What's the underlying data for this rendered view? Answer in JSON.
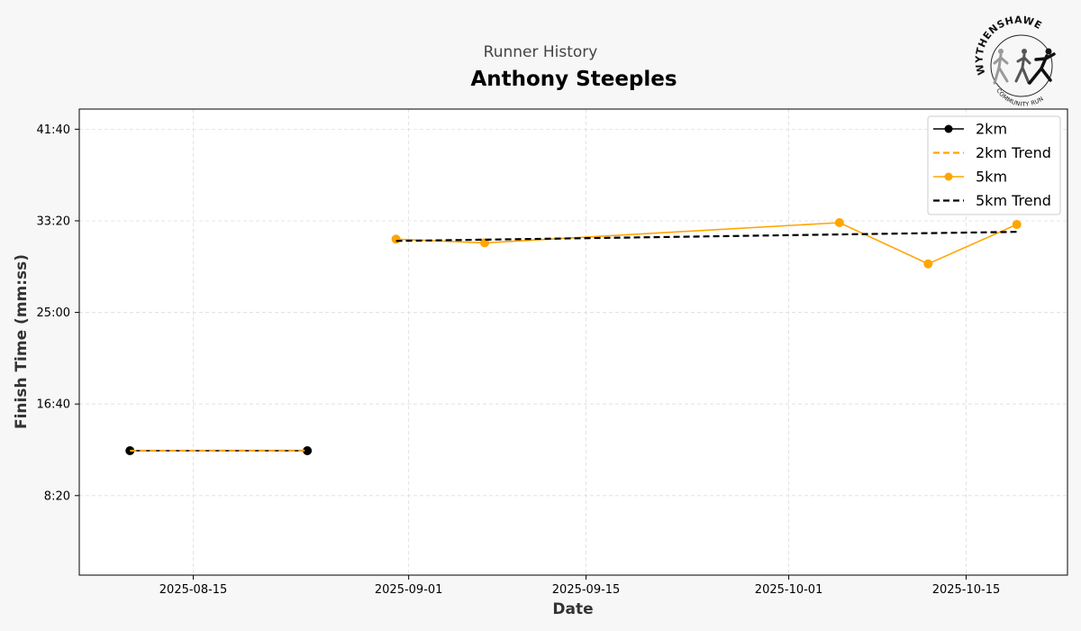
{
  "header": {
    "suptitle": "Runner History",
    "title": "Anthony Steeples"
  },
  "logo": {
    "name": "wythenshawe-community-run-logo",
    "text_top": "WYTHENSHAWE",
    "text_bottom": "COMMUNITY RUN"
  },
  "chart_data": {
    "type": "line",
    "xlabel": "Date",
    "ylabel": "Finish Time (mm:ss)",
    "x_ticks": [
      "2025-08-15",
      "2025-09-01",
      "2025-09-15",
      "2025-10-01",
      "2025-10-15"
    ],
    "y_ticks": [
      "8:20",
      "16:40",
      "25:00",
      "33:20",
      "41:40"
    ],
    "xlim": [
      "2025-08-06",
      "2025-10-23"
    ],
    "ylim": [
      "1:06",
      "43:30"
    ],
    "grid": true,
    "legend_position": "top-right",
    "series": [
      {
        "name": "2km",
        "color": "#000000",
        "style": "solid",
        "marker": "circle",
        "points": [
          {
            "x": "2025-08-10",
            "y": "12:25"
          },
          {
            "x": "2025-08-24",
            "y": "12:25"
          }
        ]
      },
      {
        "name": "2km Trend",
        "color": "#FFA500",
        "style": "dashed",
        "marker": "none",
        "points": [
          {
            "x": "2025-08-10",
            "y": "12:25"
          },
          {
            "x": "2025-08-24",
            "y": "12:26"
          }
        ]
      },
      {
        "name": "5km",
        "color": "#FFA500",
        "style": "solid",
        "marker": "circle",
        "points": [
          {
            "x": "2025-08-31",
            "y": "31:40"
          },
          {
            "x": "2025-09-07",
            "y": "31:20"
          },
          {
            "x": "2025-10-05",
            "y": "33:10"
          },
          {
            "x": "2025-10-12",
            "y": "29:25"
          },
          {
            "x": "2025-10-19",
            "y": "33:00"
          }
        ]
      },
      {
        "name": "5km Trend",
        "color": "#000000",
        "style": "dashed",
        "marker": "none",
        "points": [
          {
            "x": "2025-08-31",
            "y": "31:30"
          },
          {
            "x": "2025-10-19",
            "y": "32:20"
          }
        ]
      }
    ]
  }
}
